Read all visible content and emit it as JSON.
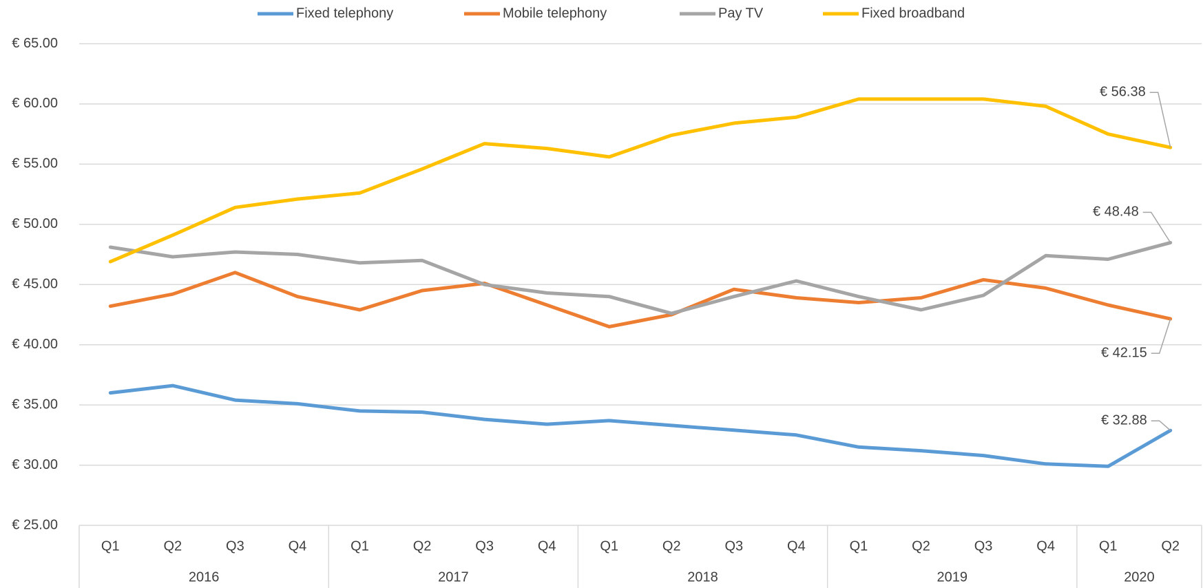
{
  "chart_data": {
    "type": "line",
    "categories": [
      "Q1",
      "Q2",
      "Q3",
      "Q4",
      "Q1",
      "Q2",
      "Q3",
      "Q4",
      "Q1",
      "Q2",
      "Q3",
      "Q4",
      "Q1",
      "Q2",
      "Q3",
      "Q4",
      "Q1",
      "Q2"
    ],
    "groups": [
      "2016",
      "2017",
      "2018",
      "2019",
      "2020"
    ],
    "series": [
      {
        "name": "Fixed telephony",
        "color": "#5b9bd5",
        "values": [
          36.0,
          36.6,
          35.4,
          35.1,
          34.5,
          34.4,
          33.8,
          33.4,
          33.7,
          33.3,
          32.9,
          32.5,
          31.5,
          31.2,
          30.8,
          30.1,
          29.9,
          32.88
        ],
        "value_labels": [
          null,
          null,
          null,
          null,
          null,
          null,
          null,
          null,
          null,
          null,
          null,
          null,
          null,
          null,
          null,
          null,
          null,
          "€ 32.88"
        ]
      },
      {
        "name": "Mobile telephony",
        "color": "#ed7d31",
        "values": [
          43.2,
          44.2,
          46.0,
          44.0,
          42.9,
          44.5,
          45.1,
          43.3,
          41.5,
          42.5,
          44.6,
          43.9,
          43.5,
          43.9,
          45.4,
          44.7,
          43.3,
          42.15
        ],
        "value_labels": [
          null,
          null,
          null,
          null,
          null,
          null,
          null,
          null,
          null,
          null,
          null,
          null,
          null,
          null,
          null,
          null,
          null,
          "€ 42.15"
        ]
      },
      {
        "name": "Pay TV",
        "color": "#a5a5a5",
        "values": [
          48.1,
          47.3,
          47.7,
          47.5,
          46.8,
          47.0,
          45.0,
          44.3,
          44.0,
          42.6,
          44.0,
          45.3,
          44.0,
          42.9,
          44.1,
          47.4,
          47.1,
          48.48
        ],
        "value_labels": [
          null,
          null,
          null,
          null,
          null,
          null,
          null,
          null,
          null,
          null,
          null,
          null,
          null,
          null,
          null,
          null,
          null,
          "€ 48.48"
        ]
      },
      {
        "name": "Fixed broadband",
        "color": "#ffc000",
        "values": [
          46.9,
          49.1,
          51.4,
          52.1,
          52.6,
          54.6,
          56.7,
          56.3,
          55.6,
          57.4,
          58.4,
          58.9,
          60.4,
          60.4,
          60.4,
          59.8,
          57.5,
          56.38
        ],
        "value_labels": [
          null,
          null,
          null,
          null,
          null,
          null,
          null,
          null,
          null,
          null,
          null,
          null,
          null,
          null,
          null,
          null,
          null,
          "€ 56.38"
        ]
      }
    ],
    "ylim": [
      25,
      65
    ],
    "yticks": [
      {
        "value": 25,
        "label": "€ 25.00"
      },
      {
        "value": 30,
        "label": "€ 30.00"
      },
      {
        "value": 35,
        "label": "€ 35.00"
      },
      {
        "value": 40,
        "label": "€ 40.00"
      },
      {
        "value": 45,
        "label": "€ 45.00"
      },
      {
        "value": 50,
        "label": "€ 50.00"
      },
      {
        "value": 55,
        "label": "€ 55.00"
      },
      {
        "value": 60,
        "label": "€ 60.00"
      },
      {
        "value": 65,
        "label": "€ 65.00"
      }
    ],
    "grid": true,
    "legend": "top"
  }
}
